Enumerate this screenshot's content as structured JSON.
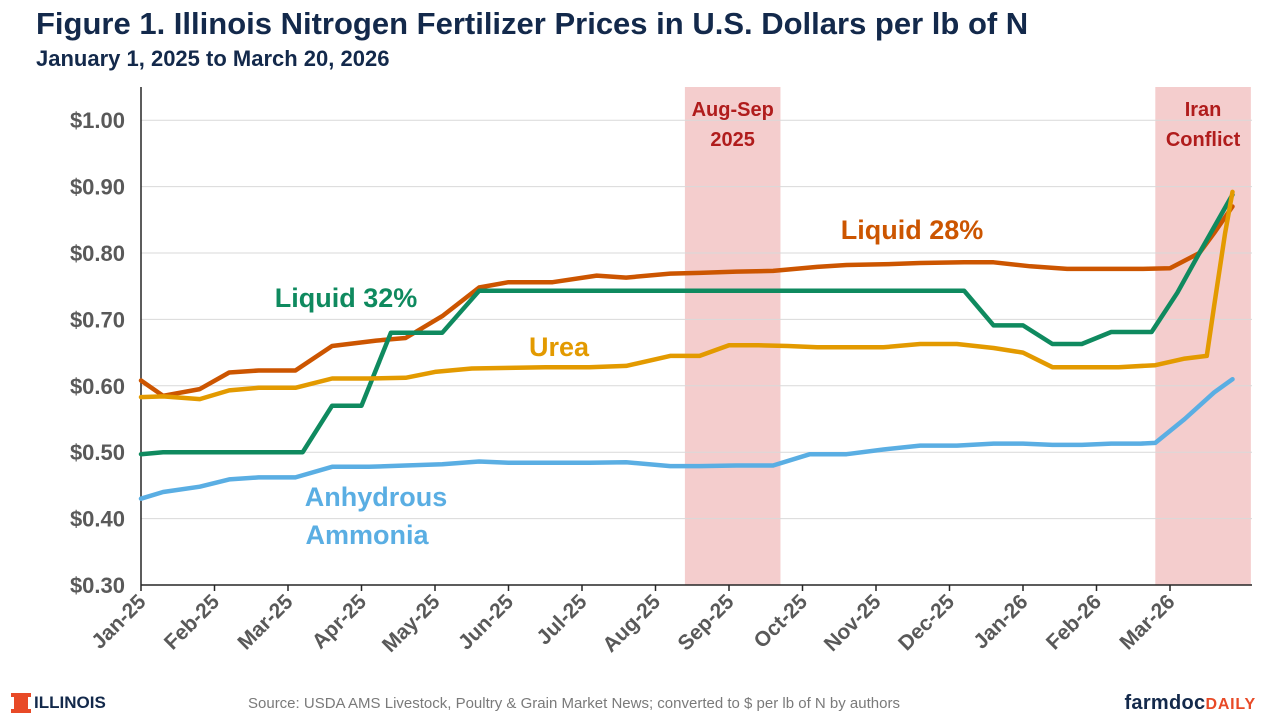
{
  "header": {
    "title": "Figure 1. Illinois Nitrogen Fertilizer Prices in U.S. Dollars per lb of N",
    "subtitle": "January 1, 2025 to March 20, 2026"
  },
  "footer": {
    "logo_text": "ILLINOIS",
    "source": "Source: USDA AMS Livestock, Poultry & Grain Market News; converted to $ per lb of N by authors",
    "brand_main": "farmdoc",
    "brand_suffix": "DAILY"
  },
  "colors": {
    "title": "#13294b",
    "shade": "#f4cdcd",
    "shade_label": "#b01c1c",
    "brand_accent": "#e84a27"
  },
  "chart_data": {
    "type": "line",
    "title": "Figure 1. Illinois Nitrogen Fertilizer Prices in U.S. Dollars per lb of N",
    "subtitle": "January 1, 2025 to March 20, 2026",
    "ylim": [
      0.3,
      1.05
    ],
    "yticks": [
      0.3,
      0.4,
      0.5,
      0.6,
      0.7,
      0.8,
      0.9,
      1.0
    ],
    "ytick_labels": [
      "$0.30",
      "$0.40",
      "$0.50",
      "$0.60",
      "$0.70",
      "$0.80",
      "$0.90",
      "$1.00"
    ],
    "xlim": [
      0,
      15.6
    ],
    "xticks": [
      0,
      1,
      2,
      3,
      4,
      5,
      6,
      7,
      8,
      9,
      10,
      11,
      12,
      13,
      14
    ],
    "xtick_labels": [
      "Jan-25",
      "Feb-25",
      "Mar-25",
      "Apr-25",
      "May-25",
      "Jun-25",
      "Jul-25",
      "Aug-25",
      "Sep-25",
      "Oct-25",
      "Nov-25",
      "Dec-25",
      "Jan-26",
      "Feb-26",
      "Mar-26"
    ],
    "x_unit": "months since Jan-25",
    "grid": true,
    "shaded_regions": [
      {
        "label_lines": [
          "Aug-Sep",
          "2025"
        ],
        "x_start": 7.4,
        "x_end": 8.7
      },
      {
        "label_lines": [
          "Iran",
          "Conflict"
        ],
        "x_start": 13.8,
        "x_end": 15.1
      }
    ],
    "series": [
      {
        "name": "Liquid 28%",
        "label_lines": [
          "Liquid 28%"
        ],
        "color": "#cc5500",
        "x": [
          0,
          0.3,
          0.8,
          1.2,
          1.6,
          2.1,
          2.6,
          3.2,
          3.6,
          4.1,
          4.6,
          5.0,
          5.6,
          6.2,
          6.6,
          7.2,
          7.6,
          8.1,
          8.6,
          9.2,
          9.6,
          10.1,
          10.6,
          11.2,
          11.6,
          12.1,
          12.6,
          13.1,
          13.6,
          14.0,
          14.4,
          14.6,
          14.85
        ],
        "values": [
          0.608,
          0.585,
          0.595,
          0.62,
          0.623,
          0.623,
          0.66,
          0.668,
          0.672,
          0.705,
          0.748,
          0.756,
          0.756,
          0.766,
          0.763,
          0.769,
          0.77,
          0.772,
          0.773,
          0.779,
          0.782,
          0.783,
          0.785,
          0.786,
          0.786,
          0.78,
          0.776,
          0.776,
          0.776,
          0.777,
          0.8,
          0.83,
          0.87
        ]
      },
      {
        "name": "Liquid 32%",
        "label_lines": [
          "Liquid 32%"
        ],
        "color": "#0f8a5f",
        "x": [
          0,
          0.3,
          2.2,
          2.6,
          3.0,
          3.4,
          3.6,
          4.1,
          4.6,
          11.2,
          11.6,
          12.0,
          12.4,
          12.8,
          13.2,
          13.6,
          13.75,
          14.1,
          14.4,
          14.85
        ],
        "values": [
          0.497,
          0.5,
          0.5,
          0.57,
          0.57,
          0.68,
          0.68,
          0.68,
          0.743,
          0.743,
          0.691,
          0.691,
          0.663,
          0.663,
          0.681,
          0.681,
          0.681,
          0.74,
          0.8,
          0.888
        ]
      },
      {
        "name": "Urea",
        "label_lines": [
          "Urea"
        ],
        "color": "#e39a00",
        "x": [
          0,
          0.3,
          0.8,
          1.2,
          1.6,
          2.1,
          2.6,
          3.1,
          3.6,
          4.0,
          4.5,
          5.0,
          5.5,
          6.1,
          6.6,
          7.2,
          7.6,
          8.0,
          8.4,
          8.8,
          9.2,
          9.6,
          10.1,
          10.6,
          11.1,
          11.6,
          12.0,
          12.4,
          12.8,
          13.3,
          13.8,
          14.2,
          14.5,
          14.6,
          14.75,
          14.85
        ],
        "values": [
          0.583,
          0.584,
          0.58,
          0.593,
          0.597,
          0.597,
          0.611,
          0.611,
          0.612,
          0.621,
          0.626,
          0.627,
          0.628,
          0.628,
          0.63,
          0.645,
          0.645,
          0.661,
          0.661,
          0.66,
          0.658,
          0.658,
          0.658,
          0.663,
          0.663,
          0.657,
          0.65,
          0.628,
          0.628,
          0.628,
          0.631,
          0.641,
          0.645,
          0.72,
          0.83,
          0.892
        ]
      },
      {
        "name": "Anhydrous Ammonia",
        "label_lines": [
          "Anhydrous",
          "Ammonia"
        ],
        "color": "#5aaee3",
        "x": [
          0,
          0.3,
          0.8,
          1.2,
          1.6,
          2.1,
          2.6,
          3.1,
          3.6,
          4.1,
          4.6,
          5.0,
          5.5,
          6.1,
          6.6,
          7.2,
          7.6,
          8.1,
          8.6,
          9.1,
          9.6,
          10.1,
          10.6,
          11.1,
          11.6,
          12.0,
          12.4,
          12.8,
          13.2,
          13.6,
          13.8,
          14.2,
          14.6,
          14.85
        ],
        "values": [
          0.43,
          0.44,
          0.448,
          0.459,
          0.462,
          0.462,
          0.478,
          0.478,
          0.48,
          0.482,
          0.486,
          0.484,
          0.484,
          0.484,
          0.485,
          0.479,
          0.479,
          0.48,
          0.48,
          0.497,
          0.497,
          0.504,
          0.51,
          0.51,
          0.513,
          0.513,
          0.511,
          0.511,
          0.513,
          0.513,
          0.514,
          0.55,
          0.59,
          0.61
        ]
      }
    ]
  }
}
